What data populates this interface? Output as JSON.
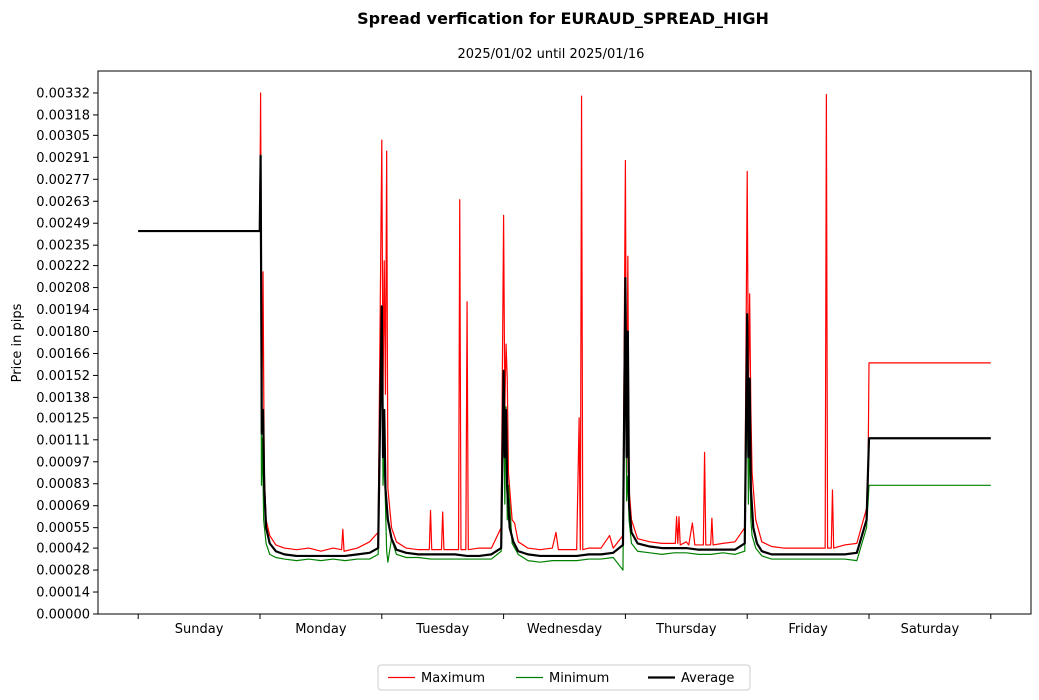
{
  "chart_data": {
    "type": "line",
    "title": "Spread verfication for EURAUD_SPREAD_HIGH",
    "subtitle": "2025/01/02 until 2025/01/16",
    "xlabel": "",
    "ylabel": "Price in pips",
    "xlim": [
      -0.33,
      7.33
    ],
    "ylim": [
      0.0,
      0.00346
    ],
    "categories": [
      "Sunday",
      "Monday",
      "Tuesday",
      "Wednesday",
      "Thursday",
      "Friday",
      "Saturday"
    ],
    "category_centers": [
      0.5,
      1.5,
      2.5,
      3.5,
      4.5,
      5.5,
      6.5
    ],
    "day_boundaries": [
      0,
      1,
      2,
      3,
      4,
      5,
      6,
      7
    ],
    "y_ticks": [
      "0.00000",
      "0.00014",
      "0.00028",
      "0.00042",
      "0.00055",
      "0.00069",
      "0.00083",
      "0.00097",
      "0.00111",
      "0.00125",
      "0.00138",
      "0.00152",
      "0.00166",
      "0.00180",
      "0.00194",
      "0.00208",
      "0.00222",
      "0.00235",
      "0.00249",
      "0.00263",
      "0.00277",
      "0.00291",
      "0.00305",
      "0.00318",
      "0.00332"
    ],
    "legend": {
      "position": "bottom-center",
      "entries": [
        "Maximum",
        "Minimum",
        "Average"
      ]
    },
    "series": [
      {
        "name": "Maximum",
        "color": "#ff0000",
        "width": 1.2,
        "points": [
          [
            0.0,
            0.00244
          ],
          [
            0.998,
            0.00244
          ],
          [
            1.005,
            0.00332
          ],
          [
            1.015,
            0.0013
          ],
          [
            1.025,
            0.00218
          ],
          [
            1.035,
            0.0009
          ],
          [
            1.05,
            0.0006
          ],
          [
            1.08,
            0.0005
          ],
          [
            1.13,
            0.00044
          ],
          [
            1.2,
            0.00042
          ],
          [
            1.3,
            0.00041
          ],
          [
            1.4,
            0.00042
          ],
          [
            1.5,
            0.0004
          ],
          [
            1.6,
            0.00042
          ],
          [
            1.67,
            0.00041
          ],
          [
            1.68,
            0.00054
          ],
          [
            1.69,
            0.0004
          ],
          [
            1.8,
            0.00042
          ],
          [
            1.9,
            0.00046
          ],
          [
            1.97,
            0.00052
          ],
          [
            2.0,
            0.00302
          ],
          [
            2.01,
            0.0014
          ],
          [
            2.02,
            0.00225
          ],
          [
            2.03,
            0.0014
          ],
          [
            2.04,
            0.00295
          ],
          [
            2.05,
            0.0008
          ],
          [
            2.08,
            0.00055
          ],
          [
            2.12,
            0.00046
          ],
          [
            2.2,
            0.00042
          ],
          [
            2.3,
            0.00041
          ],
          [
            2.39,
            0.00041
          ],
          [
            2.4,
            0.00066
          ],
          [
            2.41,
            0.00041
          ],
          [
            2.49,
            0.00041
          ],
          [
            2.5,
            0.00065
          ],
          [
            2.51,
            0.00041
          ],
          [
            2.63,
            0.00041
          ],
          [
            2.64,
            0.00264
          ],
          [
            2.65,
            0.00041
          ],
          [
            2.69,
            0.00041
          ],
          [
            2.7,
            0.00199
          ],
          [
            2.71,
            0.00041
          ],
          [
            2.8,
            0.00042
          ],
          [
            2.9,
            0.00042
          ],
          [
            2.98,
            0.00055
          ],
          [
            3.0,
            0.00254
          ],
          [
            3.01,
            0.0013
          ],
          [
            3.02,
            0.00172
          ],
          [
            3.03,
            0.0015
          ],
          [
            3.04,
            0.0009
          ],
          [
            3.07,
            0.0006
          ],
          [
            3.09,
            0.00058
          ],
          [
            3.12,
            0.00046
          ],
          [
            3.2,
            0.00042
          ],
          [
            3.3,
            0.00041
          ],
          [
            3.4,
            0.00042
          ],
          [
            3.43,
            0.00052
          ],
          [
            3.45,
            0.00041
          ],
          [
            3.6,
            0.00041
          ],
          [
            3.62,
            0.00125
          ],
          [
            3.63,
            0.00041
          ],
          [
            3.64,
            0.0033
          ],
          [
            3.65,
            0.00041
          ],
          [
            3.7,
            0.00042
          ],
          [
            3.8,
            0.00042
          ],
          [
            3.87,
            0.0005
          ],
          [
            3.9,
            0.00042
          ],
          [
            3.98,
            0.0005
          ],
          [
            4.0,
            0.00289
          ],
          [
            4.01,
            0.0009
          ],
          [
            4.02,
            0.00228
          ],
          [
            4.03,
            0.0008
          ],
          [
            4.05,
            0.0006
          ],
          [
            4.1,
            0.00048
          ],
          [
            4.2,
            0.00046
          ],
          [
            4.3,
            0.00045
          ],
          [
            4.41,
            0.00045
          ],
          [
            4.42,
            0.00062
          ],
          [
            4.43,
            0.00045
          ],
          [
            4.44,
            0.00062
          ],
          [
            4.45,
            0.00044
          ],
          [
            4.5,
            0.00046
          ],
          [
            4.52,
            0.00044
          ],
          [
            4.55,
            0.00058
          ],
          [
            4.57,
            0.00044
          ],
          [
            4.64,
            0.00044
          ],
          [
            4.65,
            0.00103
          ],
          [
            4.66,
            0.00044
          ],
          [
            4.7,
            0.00044
          ],
          [
            4.71,
            0.00061
          ],
          [
            4.72,
            0.00044
          ],
          [
            4.8,
            0.00045
          ],
          [
            4.9,
            0.00046
          ],
          [
            4.98,
            0.00055
          ],
          [
            5.0,
            0.00282
          ],
          [
            5.01,
            0.0014
          ],
          [
            5.02,
            0.00204
          ],
          [
            5.03,
            0.0013
          ],
          [
            5.04,
            0.0009
          ],
          [
            5.07,
            0.0006
          ],
          [
            5.12,
            0.00046
          ],
          [
            5.2,
            0.00043
          ],
          [
            5.3,
            0.00042
          ],
          [
            5.4,
            0.00042
          ],
          [
            5.5,
            0.00042
          ],
          [
            5.6,
            0.00042
          ],
          [
            5.64,
            0.00042
          ],
          [
            5.65,
            0.00331
          ],
          [
            5.66,
            0.00042
          ],
          [
            5.69,
            0.00042
          ],
          [
            5.7,
            0.00079
          ],
          [
            5.71,
            0.00042
          ],
          [
            5.8,
            0.00044
          ],
          [
            5.9,
            0.00045
          ],
          [
            5.99,
            0.0007
          ],
          [
            6.0,
            0.0016
          ],
          [
            7.0,
            0.0016
          ]
        ]
      },
      {
        "name": "Minimum",
        "color": "#008000",
        "width": 1.2,
        "points": [
          [
            0.0,
            0.00244
          ],
          [
            0.998,
            0.00244
          ],
          [
            1.005,
            0.00292
          ],
          [
            1.012,
            0.00082
          ],
          [
            1.02,
            0.00112
          ],
          [
            1.03,
            0.0006
          ],
          [
            1.05,
            0.00045
          ],
          [
            1.08,
            0.00038
          ],
          [
            1.13,
            0.00036
          ],
          [
            1.2,
            0.00035
          ],
          [
            1.3,
            0.00034
          ],
          [
            1.4,
            0.00035
          ],
          [
            1.5,
            0.00034
          ],
          [
            1.6,
            0.00035
          ],
          [
            1.7,
            0.00034
          ],
          [
            1.8,
            0.00035
          ],
          [
            1.9,
            0.00035
          ],
          [
            1.97,
            0.00038
          ],
          [
            2.0,
            0.00194
          ],
          [
            2.01,
            0.00082
          ],
          [
            2.02,
            0.00102
          ],
          [
            2.03,
            0.0007
          ],
          [
            2.04,
            0.0004
          ],
          [
            2.05,
            0.00033
          ],
          [
            2.08,
            0.00048
          ],
          [
            2.12,
            0.00038
          ],
          [
            2.2,
            0.00036
          ],
          [
            2.3,
            0.00036
          ],
          [
            2.4,
            0.00035
          ],
          [
            2.5,
            0.00035
          ],
          [
            2.6,
            0.00035
          ],
          [
            2.7,
            0.00035
          ],
          [
            2.8,
            0.00035
          ],
          [
            2.9,
            0.00035
          ],
          [
            2.98,
            0.0004
          ],
          [
            3.0,
            0.00152
          ],
          [
            3.01,
            0.0007
          ],
          [
            3.02,
            0.00132
          ],
          [
            3.03,
            0.0006
          ],
          [
            3.04,
            0.00082
          ],
          [
            3.07,
            0.00045
          ],
          [
            3.12,
            0.00038
          ],
          [
            3.2,
            0.00034
          ],
          [
            3.3,
            0.00033
          ],
          [
            3.4,
            0.00034
          ],
          [
            3.5,
            0.00034
          ],
          [
            3.6,
            0.00034
          ],
          [
            3.7,
            0.00035
          ],
          [
            3.8,
            0.00035
          ],
          [
            3.9,
            0.00036
          ],
          [
            3.98,
            0.00028
          ],
          [
            4.0,
            0.00212
          ],
          [
            4.01,
            0.00072
          ],
          [
            4.02,
            0.00088
          ],
          [
            4.03,
            0.0006
          ],
          [
            4.05,
            0.00045
          ],
          [
            4.1,
            0.0004
          ],
          [
            4.2,
            0.00039
          ],
          [
            4.3,
            0.00038
          ],
          [
            4.4,
            0.00039
          ],
          [
            4.5,
            0.00039
          ],
          [
            4.6,
            0.00038
          ],
          [
            4.7,
            0.00038
          ],
          [
            4.8,
            0.00039
          ],
          [
            4.9,
            0.00038
          ],
          [
            4.98,
            0.0004
          ],
          [
            5.0,
            0.00155
          ],
          [
            5.01,
            0.0007
          ],
          [
            5.02,
            0.00125
          ],
          [
            5.03,
            0.0006
          ],
          [
            5.04,
            0.0005
          ],
          [
            5.07,
            0.00042
          ],
          [
            5.12,
            0.00037
          ],
          [
            5.2,
            0.00035
          ],
          [
            5.3,
            0.00035
          ],
          [
            5.4,
            0.00035
          ],
          [
            5.5,
            0.00035
          ],
          [
            5.6,
            0.00035
          ],
          [
            5.7,
            0.00035
          ],
          [
            5.8,
            0.00035
          ],
          [
            5.9,
            0.00034
          ],
          [
            5.98,
            0.00055
          ],
          [
            6.0,
            0.00082
          ],
          [
            7.0,
            0.00082
          ]
        ]
      },
      {
        "name": "Average",
        "color": "#000000",
        "width": 2.2,
        "points": [
          [
            0.0,
            0.00244
          ],
          [
            0.998,
            0.00244
          ],
          [
            1.005,
            0.00292
          ],
          [
            1.015,
            0.00115
          ],
          [
            1.025,
            0.0013
          ],
          [
            1.035,
            0.0008
          ],
          [
            1.05,
            0.00055
          ],
          [
            1.08,
            0.00045
          ],
          [
            1.13,
            0.0004
          ],
          [
            1.2,
            0.00038
          ],
          [
            1.3,
            0.00037
          ],
          [
            1.4,
            0.00037
          ],
          [
            1.5,
            0.00037
          ],
          [
            1.6,
            0.00037
          ],
          [
            1.7,
            0.00037
          ],
          [
            1.8,
            0.00038
          ],
          [
            1.9,
            0.00039
          ],
          [
            1.97,
            0.00042
          ],
          [
            2.0,
            0.00196
          ],
          [
            2.01,
            0.001
          ],
          [
            2.02,
            0.0013
          ],
          [
            2.03,
            0.0008
          ],
          [
            2.05,
            0.0006
          ],
          [
            2.08,
            0.00048
          ],
          [
            2.12,
            0.00041
          ],
          [
            2.2,
            0.00039
          ],
          [
            2.3,
            0.00038
          ],
          [
            2.4,
            0.00038
          ],
          [
            2.5,
            0.00038
          ],
          [
            2.6,
            0.00038
          ],
          [
            2.7,
            0.00037
          ],
          [
            2.8,
            0.00037
          ],
          [
            2.9,
            0.00038
          ],
          [
            2.98,
            0.00042
          ],
          [
            3.0,
            0.00155
          ],
          [
            3.01,
            0.001
          ],
          [
            3.02,
            0.0013
          ],
          [
            3.03,
            0.0008
          ],
          [
            3.05,
            0.00055
          ],
          [
            3.08,
            0.00046
          ],
          [
            3.12,
            0.0004
          ],
          [
            3.2,
            0.00038
          ],
          [
            3.3,
            0.00037
          ],
          [
            3.4,
            0.00037
          ],
          [
            3.5,
            0.00037
          ],
          [
            3.6,
            0.00037
          ],
          [
            3.7,
            0.00038
          ],
          [
            3.8,
            0.00038
          ],
          [
            3.9,
            0.00039
          ],
          [
            3.98,
            0.00044
          ],
          [
            4.0,
            0.00214
          ],
          [
            4.01,
            0.001
          ],
          [
            4.02,
            0.0018
          ],
          [
            4.03,
            0.0007
          ],
          [
            4.05,
            0.00052
          ],
          [
            4.1,
            0.00045
          ],
          [
            4.2,
            0.00043
          ],
          [
            4.3,
            0.00042
          ],
          [
            4.4,
            0.00042
          ],
          [
            4.5,
            0.00042
          ],
          [
            4.6,
            0.00041
          ],
          [
            4.7,
            0.00041
          ],
          [
            4.8,
            0.00041
          ],
          [
            4.9,
            0.00041
          ],
          [
            4.98,
            0.00045
          ],
          [
            5.0,
            0.00191
          ],
          [
            5.01,
            0.001
          ],
          [
            5.02,
            0.0015
          ],
          [
            5.03,
            0.0008
          ],
          [
            5.05,
            0.00055
          ],
          [
            5.08,
            0.00045
          ],
          [
            5.12,
            0.0004
          ],
          [
            5.2,
            0.00038
          ],
          [
            5.3,
            0.00038
          ],
          [
            5.4,
            0.00038
          ],
          [
            5.5,
            0.00038
          ],
          [
            5.6,
            0.00038
          ],
          [
            5.7,
            0.00038
          ],
          [
            5.8,
            0.00038
          ],
          [
            5.9,
            0.00039
          ],
          [
            5.98,
            0.0006
          ],
          [
            6.0,
            0.00112
          ],
          [
            7.0,
            0.00112
          ]
        ]
      }
    ]
  }
}
